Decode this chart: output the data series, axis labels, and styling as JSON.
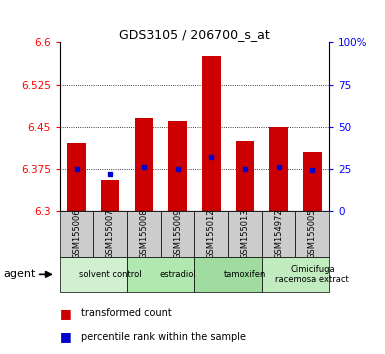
{
  "title": "GDS3105 / 206700_s_at",
  "samples": [
    "GSM155006",
    "GSM155007",
    "GSM155008",
    "GSM155009",
    "GSM155012",
    "GSM155013",
    "GSM154972",
    "GSM155005"
  ],
  "transformed_counts": [
    6.42,
    6.355,
    6.465,
    6.46,
    6.575,
    6.425,
    6.45,
    6.405
  ],
  "percentile_ranks": [
    25,
    22,
    26,
    25,
    32,
    25,
    26,
    24
  ],
  "ymin": 6.3,
  "ymax": 6.6,
  "yticks": [
    6.3,
    6.375,
    6.45,
    6.525,
    6.6
  ],
  "ytick_labels": [
    "6.3",
    "6.375",
    "6.45",
    "6.525",
    "6.6"
  ],
  "right_yticks": [
    0,
    25,
    50,
    75,
    100
  ],
  "right_ytick_labels": [
    "0",
    "25",
    "50",
    "75",
    "100%"
  ],
  "gridlines": [
    6.375,
    6.45,
    6.525
  ],
  "groups": [
    {
      "label": "solvent control",
      "start": 0,
      "end": 2,
      "color": "#d0f0d0"
    },
    {
      "label": "estradiol",
      "start": 2,
      "end": 4,
      "color": "#b0e8b0"
    },
    {
      "label": "tamoxifen",
      "start": 4,
      "end": 6,
      "color": "#a0dca0"
    },
    {
      "label": "Cimicifuga\nracemosa extract",
      "start": 6,
      "end": 8,
      "color": "#c0ecc0"
    }
  ],
  "bar_color": "#cc0000",
  "dot_color": "#0000cc",
  "bar_width": 0.55,
  "sample_bg_color": "#cccccc",
  "agent_label": "agent",
  "legend_bar_label": "transformed count",
  "legend_dot_label": "percentile rank within the sample",
  "fig_width": 3.85,
  "fig_height": 3.54,
  "dpi": 100
}
